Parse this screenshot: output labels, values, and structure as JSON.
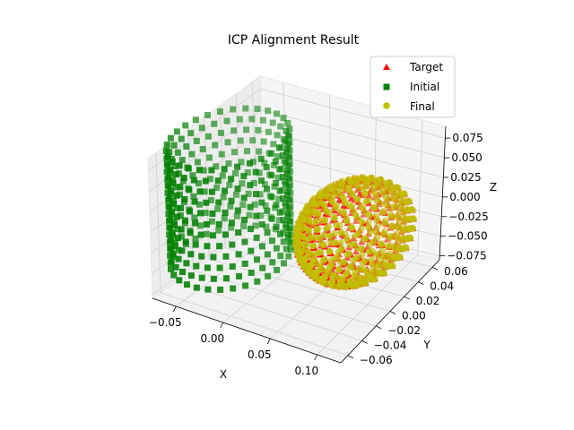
{
  "chart_data": {
    "type": "scatter",
    "projection": "3d",
    "title": "ICP Alignment Result",
    "xlabel": "X",
    "ylabel": "Y",
    "zlabel": "Z",
    "xlim": [
      -0.075,
      0.125
    ],
    "ylim": [
      -0.07,
      0.07
    ],
    "zlim": [
      -0.08,
      0.09
    ],
    "xticks": [
      "−0.05",
      "0.00",
      "0.05",
      "0.10"
    ],
    "xtick_values": [
      -0.05,
      0.0,
      0.05,
      0.1
    ],
    "yticks": [
      "−0.06",
      "−0.04",
      "−0.02",
      "0.00",
      "0.02",
      "0.04",
      "0.06"
    ],
    "ytick_values": [
      -0.06,
      -0.04,
      -0.02,
      0.0,
      0.02,
      0.04,
      0.06
    ],
    "zticks": [
      "−0.075",
      "−0.050",
      "−0.025",
      "0.000",
      "0.025",
      "0.050",
      "0.075"
    ],
    "ztick_values": [
      -0.075,
      -0.05,
      -0.025,
      0.0,
      0.025,
      0.05,
      0.075
    ],
    "grid": true,
    "legend_position": "top-right",
    "series": [
      {
        "name": "Target",
        "marker": "triangle",
        "color": "#ff0000",
        "shape": "sphere",
        "center": [
          0.085,
          0.0,
          0.0
        ],
        "radius": 0.05
      },
      {
        "name": "Initial",
        "marker": "square",
        "color": "#008000",
        "shape": "cylinder",
        "center": [
          -0.05,
          0.0,
          0.0
        ],
        "radius": 0.05,
        "z_range": [
          -0.07,
          0.07
        ]
      },
      {
        "name": "Final",
        "marker": "circle",
        "color": "#bfbf00",
        "shape": "sphere",
        "center": [
          0.085,
          0.0,
          0.0
        ],
        "radius": 0.05
      }
    ]
  }
}
